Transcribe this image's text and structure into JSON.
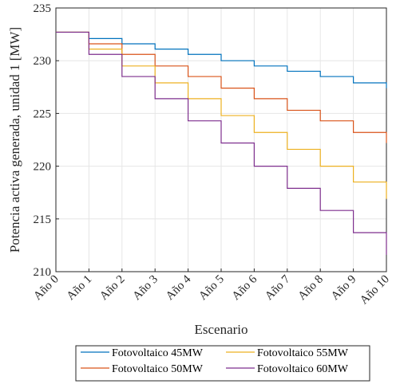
{
  "chart_data": {
    "type": "line",
    "step": true,
    "xlabel": "Escenario",
    "ylabel": "Potencia activa generada, unidad 1 [MW]",
    "categories": [
      "Año 0",
      "Año 1",
      "Año 2",
      "Año 3",
      "Año 4",
      "Año 5",
      "Año 6",
      "Año 7",
      "Año 8",
      "Año 9",
      "Año 10"
    ],
    "ylim": [
      210,
      235
    ],
    "yticks": [
      210,
      215,
      220,
      225,
      230,
      235
    ],
    "grid": true,
    "legend_position": "bottom",
    "series": [
      {
        "name": "Fotovoltaico 45MW",
        "color": "#0072BD",
        "values": [
          232.7,
          232.1,
          231.6,
          231.1,
          230.6,
          230.0,
          229.5,
          229.0,
          228.5,
          227.9,
          227.4
        ]
      },
      {
        "name": "Fotovoltaico 50MW",
        "color": "#D95319",
        "values": [
          232.7,
          231.6,
          230.6,
          229.5,
          228.5,
          227.4,
          226.4,
          225.3,
          224.3,
          223.2,
          222.2
        ]
      },
      {
        "name": "Fotovoltaico 55MW",
        "color": "#EDB120",
        "values": [
          232.7,
          231.1,
          229.5,
          227.9,
          226.4,
          224.8,
          223.2,
          221.6,
          220.0,
          218.5,
          216.9
        ]
      },
      {
        "name": "Fotovoltaico 60MW",
        "color": "#7E2F8E",
        "values": [
          232.7,
          230.6,
          228.5,
          226.4,
          224.3,
          222.2,
          220.0,
          217.9,
          215.8,
          213.7,
          211.6
        ]
      }
    ]
  }
}
